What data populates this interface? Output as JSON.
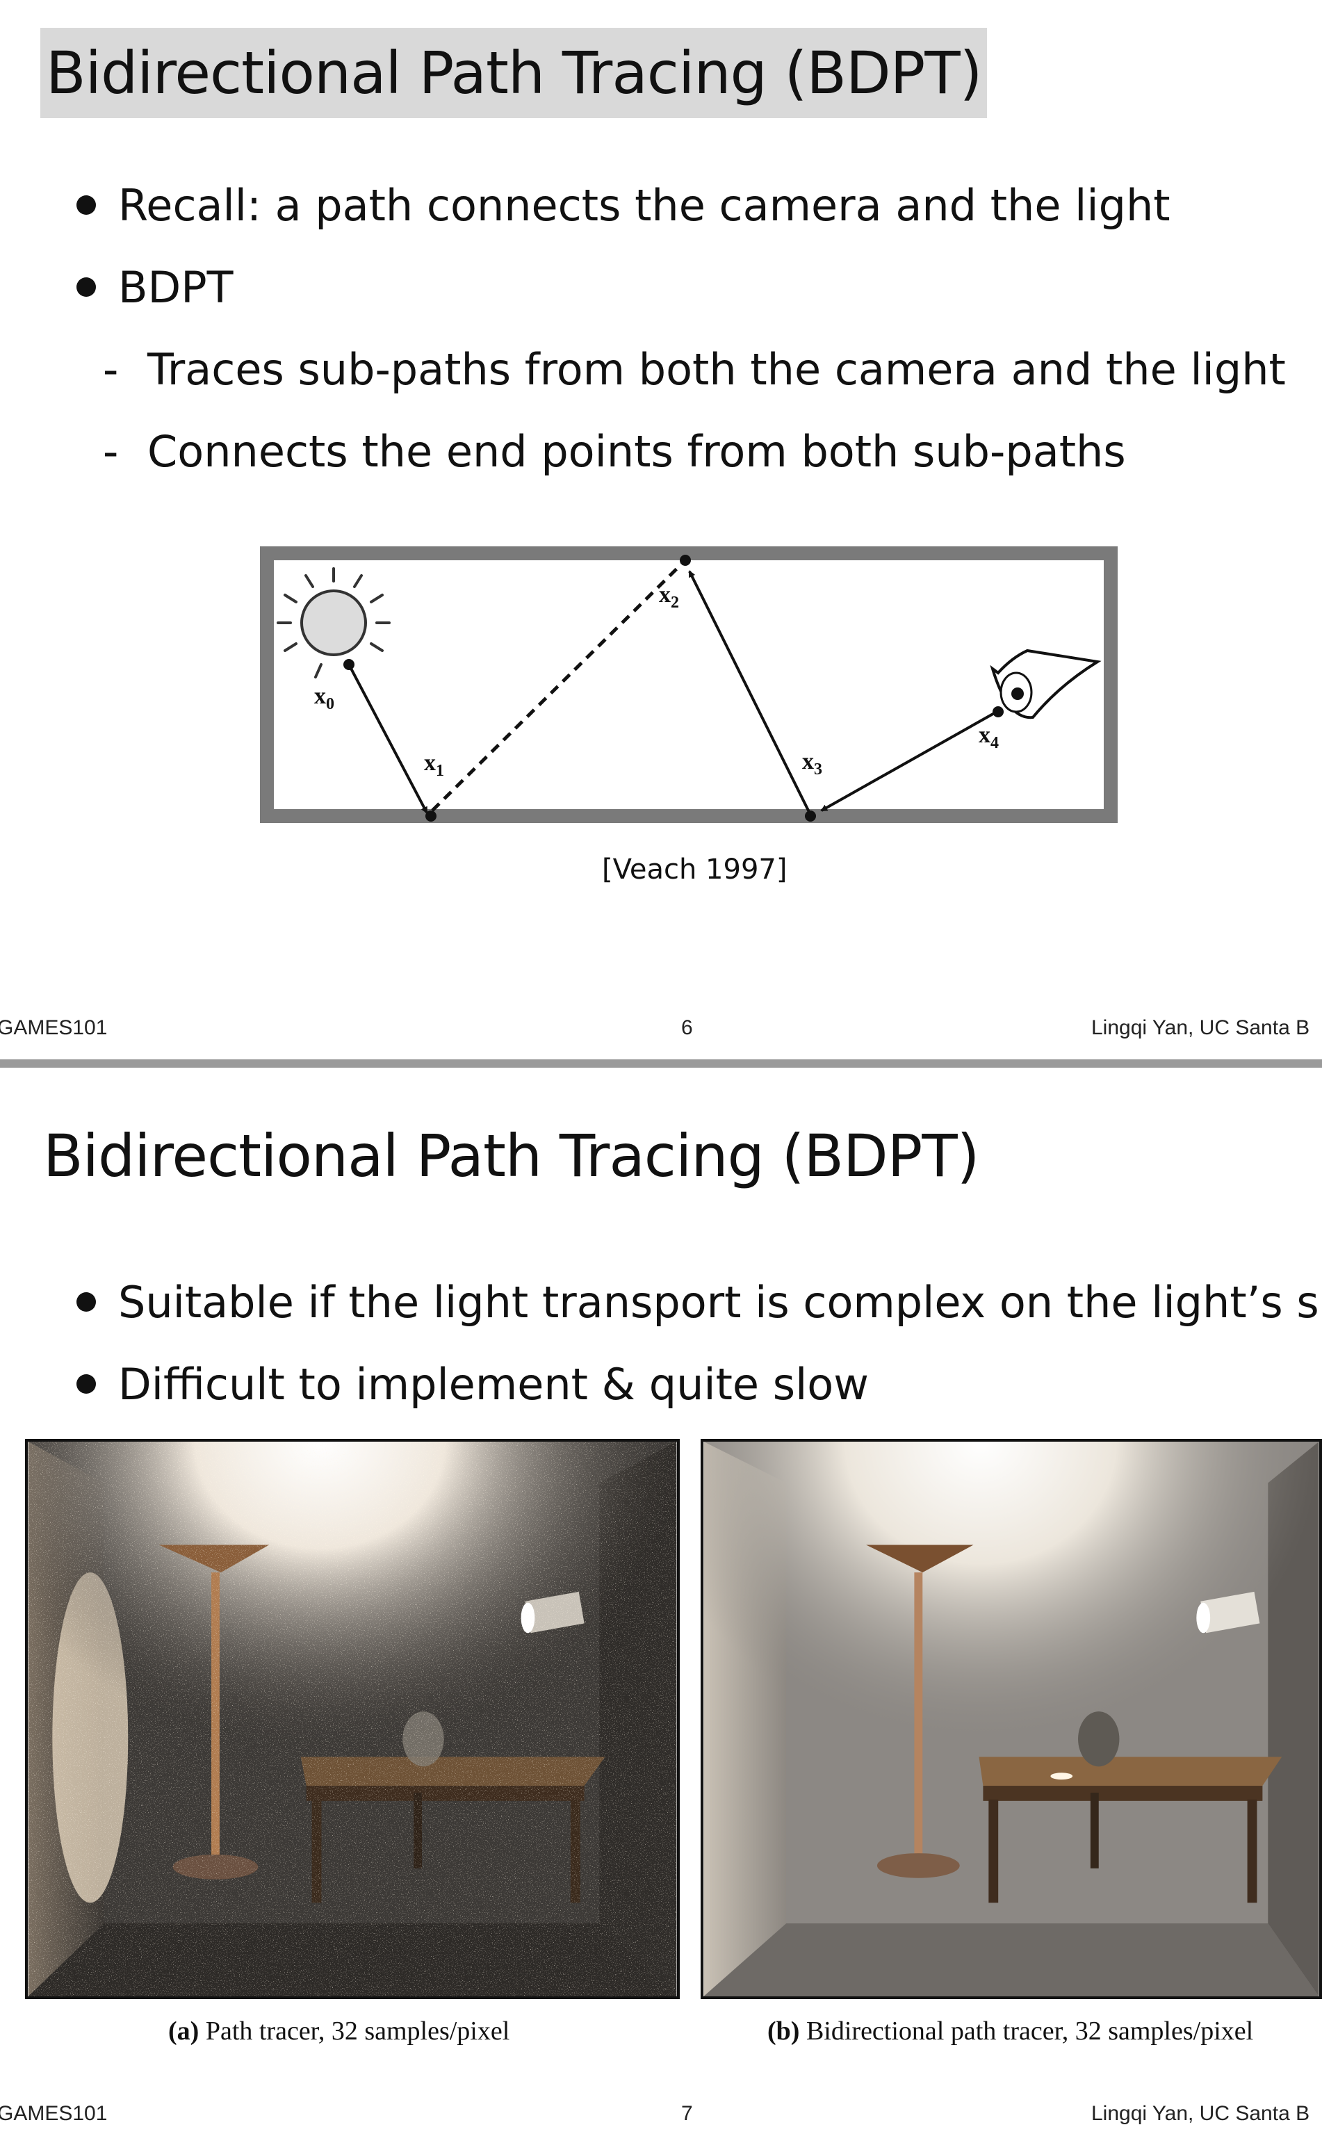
{
  "slide1": {
    "title": "Bidirectional Path Tracing (BDPT)",
    "bullets": [
      "Recall: a path connects the camera and the light",
      "BDPT"
    ],
    "subbullets": [
      "Traces sub-paths from both the camera and the light",
      "Connects the end points from both sub-paths"
    ],
    "diagram": {
      "labels": {
        "x0": "x",
        "x0_sub": "0",
        "x1": "x",
        "x1_sub": "1",
        "x2": "x",
        "x2_sub": "2",
        "x3": "x",
        "x3_sub": "3",
        "x4": "x",
        "x4_sub": "4"
      },
      "icons": [
        "sun-light-icon",
        "eye-camera-icon"
      ]
    },
    "caption": "[Veach 1997]",
    "footer": {
      "left": "GAMES101",
      "center": "6",
      "right": "Lingqi Yan, UC Santa B"
    }
  },
  "slide2": {
    "title": "Bidirectional Path Tracing (BDPT)",
    "bullets": [
      "Suitable if the light transport is complex on the light’s side",
      "Difficult to implement & quite slow"
    ],
    "images": [
      {
        "caption_label": "(a)",
        "caption_text": " Path tracer, 32 samples/pixel"
      },
      {
        "caption_label": "(b)",
        "caption_text": " Bidirectional path tracer, 32 samples/pixel"
      }
    ],
    "footer": {
      "left": "GAMES101",
      "center": "7",
      "right": "Lingqi Yan, UC Santa B"
    }
  }
}
